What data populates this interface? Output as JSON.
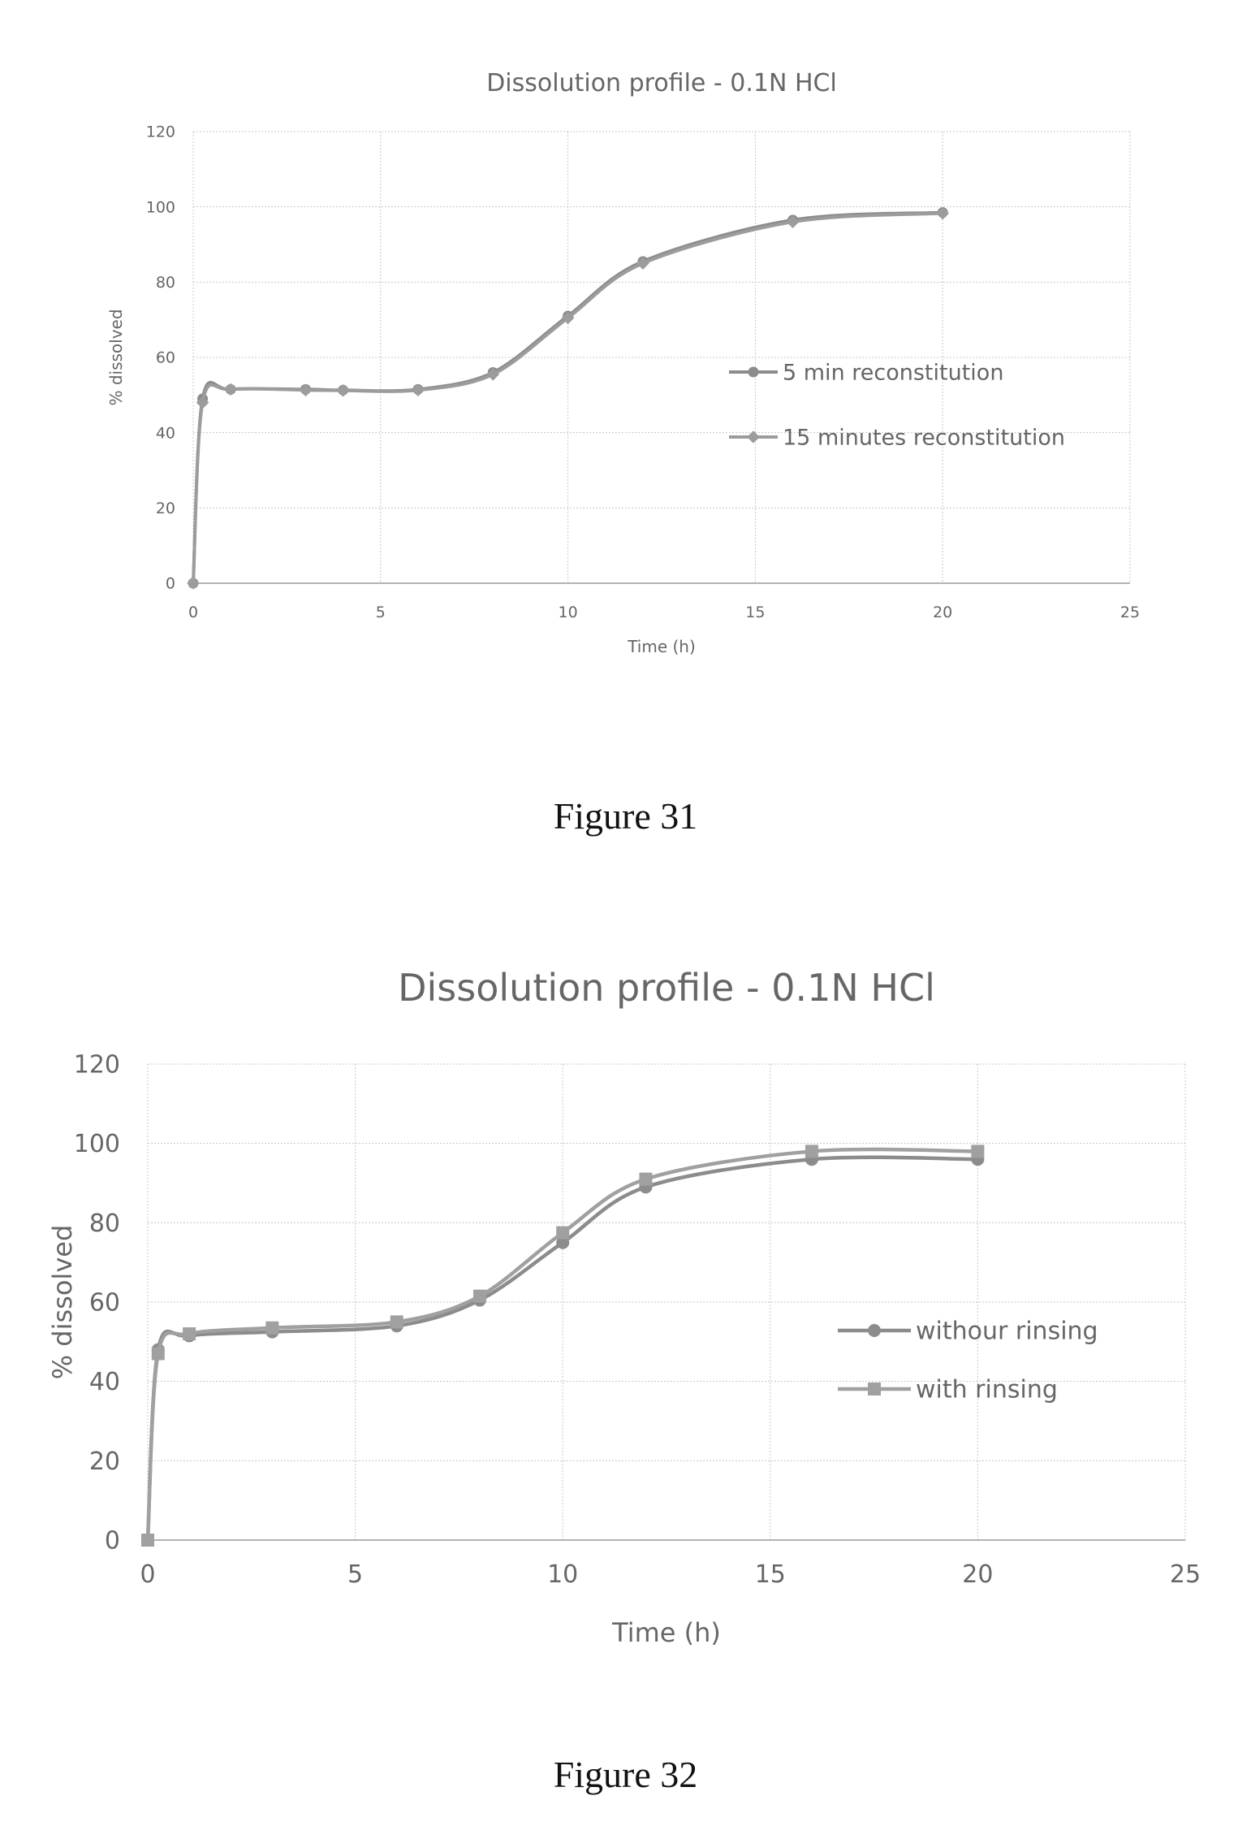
{
  "figures": [
    {
      "caption": "Figure 31"
    },
    {
      "caption": "Figure 32"
    }
  ],
  "chart_data": [
    {
      "type": "line",
      "title": "Dissolution profile - 0.1N HCl",
      "xlabel": "Time (h)",
      "ylabel": "% dissolved",
      "xlim": [
        0,
        25
      ],
      "ylim": [
        0,
        120
      ],
      "x_ticks": [
        "0",
        "5",
        "10",
        "15",
        "20",
        "25"
      ],
      "y_ticks": [
        "0",
        "20",
        "40",
        "60",
        "80",
        "100",
        "120"
      ],
      "grid": true,
      "legend_position": "right",
      "series": [
        {
          "name": "5 min reconstitution",
          "marker": "circle",
          "color": "#8c8c8c",
          "x": [
            0,
            0.25,
            1,
            3,
            4,
            6,
            8,
            10,
            12,
            16,
            20
          ],
          "y": [
            0,
            49,
            51.5,
            51.5,
            51.3,
            51.5,
            56,
            71,
            85.5,
            96.5,
            98.5
          ]
        },
        {
          "name": "15 minutes reconstitution",
          "marker": "diamond",
          "color": "#9c9c9c",
          "x": [
            0,
            0.25,
            1,
            3,
            4,
            6,
            8,
            10,
            12,
            16,
            20
          ],
          "y": [
            0,
            48,
            51.5,
            51.3,
            51.2,
            51.3,
            55.5,
            70.5,
            85,
            96,
            98.3
          ]
        }
      ]
    },
    {
      "type": "line",
      "title": "Dissolution profile - 0.1N HCl",
      "xlabel": "Time (h)",
      "ylabel": "% dissolved",
      "xlim": [
        0,
        25
      ],
      "ylim": [
        0,
        120
      ],
      "x_ticks": [
        "0",
        "5",
        "10",
        "15",
        "20",
        "25"
      ],
      "y_ticks": [
        "0",
        "20",
        "40",
        "60",
        "80",
        "100",
        "120"
      ],
      "grid": true,
      "legend_position": "right",
      "series": [
        {
          "name": "withour rinsing",
          "marker": "circle",
          "color": "#8c8c8c",
          "x": [
            0,
            0.25,
            1,
            3,
            6,
            8,
            10,
            12,
            16,
            20
          ],
          "y": [
            0,
            48,
            51.5,
            52.5,
            54,
            60.5,
            75,
            89,
            96,
            96
          ]
        },
        {
          "name": "with rinsing",
          "marker": "square",
          "color": "#a0a0a0",
          "x": [
            0,
            0.25,
            1,
            3,
            6,
            8,
            10,
            12,
            16,
            20
          ],
          "y": [
            0,
            47,
            52,
            53.5,
            55,
            61.5,
            77.5,
            91,
            98,
            98
          ]
        }
      ]
    }
  ]
}
